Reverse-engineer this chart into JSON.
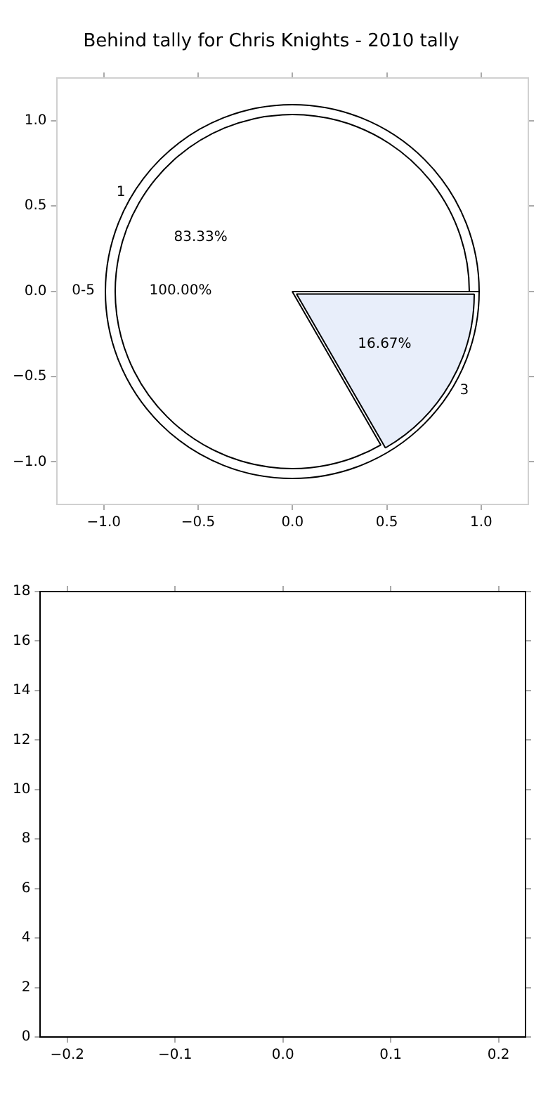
{
  "chart_data": [
    {
      "type": "scatter",
      "title": "Behind tally for Chris Knights - 2010 tally",
      "xlim": [
        -1.25,
        1.25
      ],
      "xticks": [
        {
          "value": -1,
          "label": "−1.0"
        },
        {
          "value": -0.5,
          "label": "−0.5"
        },
        {
          "value": 0,
          "label": "0.0"
        },
        {
          "value": 0.5,
          "label": "0.5"
        },
        {
          "value": 1,
          "label": "1.0"
        }
      ],
      "ylim": [
        -1.25,
        1.25
      ],
      "yticks": [
        {
          "value": -1,
          "label": "−1.0"
        },
        {
          "value": -0.5,
          "label": "−0.5"
        },
        {
          "value": 0,
          "label": "0.0"
        },
        {
          "value": 0.5,
          "label": "0.5"
        },
        {
          "value": 1,
          "label": "1.0"
        }
      ]
    },
    {
      "type": "pie",
      "categories": [
        "1",
        "3"
      ],
      "values": [
        83.33,
        16.67
      ],
      "colors": [
        "#ffffff",
        "#e8eefa"
      ],
      "value_labels": [
        "83.33%",
        "16.67%"
      ]
    },
    {
      "type": "pie",
      "categories": [
        "0-5"
      ],
      "values": [
        100
      ],
      "colors": [
        "#ffffff"
      ],
      "value_labels": [
        "100.00%"
      ]
    },
    {
      "type": "scatter",
      "xlim": [
        -0.225,
        0.225
      ],
      "xticks": [
        {
          "value": -0.2,
          "label": "−0.2"
        },
        {
          "value": -0.1,
          "label": "−0.1"
        },
        {
          "value": 0,
          "label": "0.0"
        },
        {
          "value": 0.1,
          "label": "0.1"
        },
        {
          "value": 0.2,
          "label": "0.2"
        }
      ],
      "ylim": [
        0,
        18
      ],
      "yticks": [
        0,
        2,
        4,
        6,
        8,
        10,
        12,
        14,
        16,
        18
      ]
    }
  ]
}
